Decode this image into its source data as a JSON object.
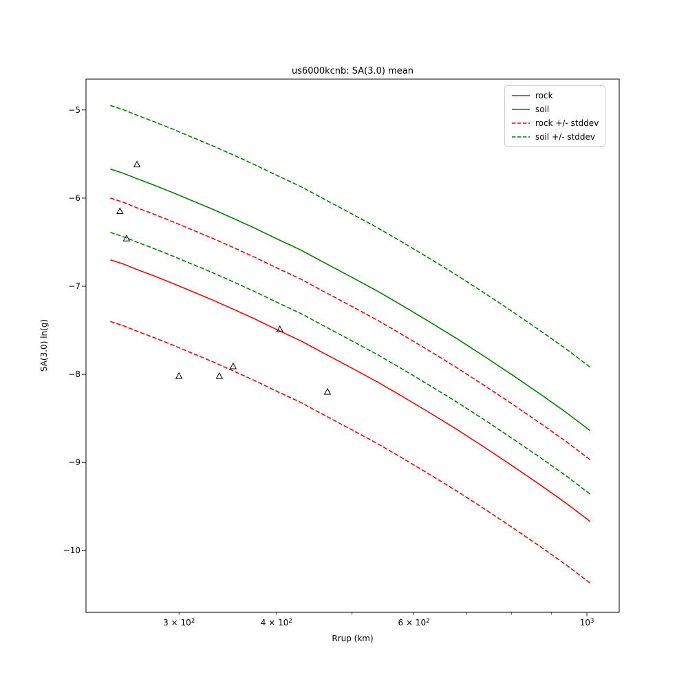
{
  "chart_data": {
    "type": "line",
    "title": "us6000kcnb: SA(3.0) mean",
    "xlabel": "Rrup (km)",
    "ylabel": "SA(3.0) ln(g)",
    "x_scale": "log",
    "xlim": [
      228,
      1100
    ],
    "ylim": [
      -10.7,
      -4.65
    ],
    "grid": false,
    "legend_position": "upper right",
    "x_major_ticks": [
      1000
    ],
    "x_minor_ticks": [
      300,
      400,
      500,
      600,
      700,
      800,
      900
    ],
    "x_tick_labels": [
      {
        "v": 300,
        "label": "3 × 10",
        "sup": "2"
      },
      {
        "v": 400,
        "label": "4 × 10",
        "sup": "2"
      },
      {
        "v": 600,
        "label": "6 × 10",
        "sup": "2"
      },
      {
        "v": 1000,
        "label": "10",
        "sup": "3"
      }
    ],
    "y_ticks": [
      {
        "v": -5,
        "label": "−5"
      },
      {
        "v": -6,
        "label": "−6"
      },
      {
        "v": -7,
        "label": "−7"
      },
      {
        "v": -8,
        "label": "−8"
      },
      {
        "v": -9,
        "label": "−9"
      },
      {
        "v": -10,
        "label": "−10"
      }
    ],
    "x": [
      245,
      255,
      265,
      280,
      295,
      310,
      330,
      350,
      375,
      400,
      430,
      460,
      500,
      540,
      580,
      630,
      680,
      740,
      800,
      870,
      940,
      1010
    ],
    "series": [
      {
        "id": "rock_plus_stddev",
        "name": "rock + stddev",
        "color": "#ff0000",
        "style": "dashed",
        "values": [
          -6.0,
          -6.05,
          -6.11,
          -6.19,
          -6.27,
          -6.35,
          -6.45,
          -6.55,
          -6.67,
          -6.79,
          -6.92,
          -7.06,
          -7.23,
          -7.39,
          -7.55,
          -7.74,
          -7.92,
          -8.13,
          -8.33,
          -8.55,
          -8.76,
          -8.97
        ]
      },
      {
        "id": "rock_minus_stddev",
        "name": "rock - stddev",
        "color": "#ff0000",
        "style": "dashed",
        "values": [
          -7.4,
          -7.45,
          -7.51,
          -7.59,
          -7.67,
          -7.75,
          -7.85,
          -7.95,
          -8.07,
          -8.19,
          -8.32,
          -8.46,
          -8.63,
          -8.79,
          -8.95,
          -9.14,
          -9.32,
          -9.53,
          -9.73,
          -9.95,
          -10.16,
          -10.37
        ]
      },
      {
        "id": "soil_plus_stddev",
        "name": "soil + stddev",
        "color": "#008000",
        "style": "dashed",
        "values": [
          -4.95,
          -5.0,
          -5.06,
          -5.14,
          -5.22,
          -5.3,
          -5.4,
          -5.5,
          -5.62,
          -5.74,
          -5.87,
          -6.01,
          -6.18,
          -6.34,
          -6.5,
          -6.69,
          -6.87,
          -7.08,
          -7.28,
          -7.5,
          -7.71,
          -7.92
        ]
      },
      {
        "id": "soil_minus_stddev",
        "name": "soil - stddev",
        "color": "#008000",
        "style": "dashed",
        "values": [
          -6.39,
          -6.44,
          -6.5,
          -6.58,
          -6.66,
          -6.74,
          -6.84,
          -6.94,
          -7.06,
          -7.18,
          -7.31,
          -7.45,
          -7.62,
          -7.78,
          -7.94,
          -8.13,
          -8.31,
          -8.52,
          -8.72,
          -8.94,
          -9.15,
          -9.36
        ]
      },
      {
        "id": "rock",
        "name": "rock",
        "color": "#ff0000",
        "style": "solid",
        "values": [
          -6.7,
          -6.75,
          -6.81,
          -6.89,
          -6.97,
          -7.05,
          -7.15,
          -7.25,
          -7.37,
          -7.49,
          -7.62,
          -7.76,
          -7.93,
          -8.09,
          -8.25,
          -8.44,
          -8.62,
          -8.83,
          -9.03,
          -9.25,
          -9.46,
          -9.67
        ]
      },
      {
        "id": "soil",
        "name": "soil",
        "color": "#008000",
        "style": "solid",
        "values": [
          -5.67,
          -5.72,
          -5.78,
          -5.86,
          -5.94,
          -6.02,
          -6.12,
          -6.22,
          -6.34,
          -6.46,
          -6.59,
          -6.73,
          -6.9,
          -7.06,
          -7.22,
          -7.41,
          -7.59,
          -7.8,
          -8.0,
          -8.22,
          -8.43,
          -8.64
        ]
      }
    ],
    "scatter": {
      "marker": "triangle-up-open",
      "color": "#000000",
      "points": [
        [
          265,
          -5.62
        ],
        [
          252,
          -6.15
        ],
        [
          257,
          -6.46
        ],
        [
          404,
          -7.49
        ],
        [
          352,
          -7.91
        ],
        [
          300,
          -8.02
        ],
        [
          338,
          -8.02
        ],
        [
          465,
          -8.2
        ]
      ]
    },
    "legend": [
      {
        "label": "rock",
        "color": "#ff0000",
        "style": "solid"
      },
      {
        "label": "soil",
        "color": "#008000",
        "style": "solid"
      },
      {
        "label": "rock +/- stddev",
        "color": "#ff0000",
        "style": "dashed"
      },
      {
        "label": "soil +/- stddev",
        "color": "#008000",
        "style": "dashed"
      }
    ]
  }
}
